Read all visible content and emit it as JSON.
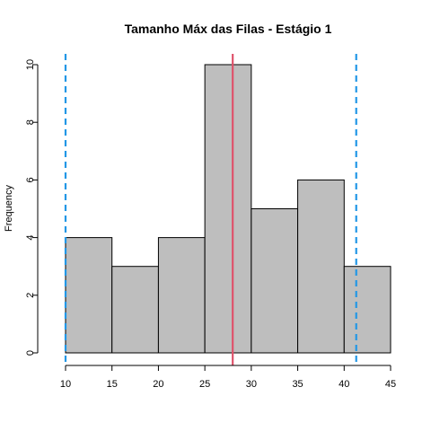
{
  "chart_data": {
    "type": "bar",
    "title": "Tamanho Máx das Filas - Estágio 1",
    "xlabel": "",
    "ylabel": "Frequency",
    "bins": [
      {
        "from": 10,
        "to": 15,
        "count": 4
      },
      {
        "from": 15,
        "to": 20,
        "count": 3
      },
      {
        "from": 20,
        "to": 25,
        "count": 4
      },
      {
        "from": 25,
        "to": 30,
        "count": 10
      },
      {
        "from": 30,
        "to": 35,
        "count": 5
      },
      {
        "from": 35,
        "to": 40,
        "count": 6
      },
      {
        "from": 40,
        "to": 45,
        "count": 3
      }
    ],
    "x_ticks": [
      "10",
      "15",
      "20",
      "25",
      "30",
      "35",
      "40",
      "45"
    ],
    "y_ticks": [
      "0",
      "2",
      "4",
      "6",
      "8",
      "10"
    ],
    "xlim": [
      10,
      45
    ],
    "ylim": [
      0,
      10
    ],
    "grid": false,
    "bar_fill": "#bebebe",
    "bar_stroke": "#000000",
    "reference_lines": [
      {
        "x": 28,
        "color": "#df536b",
        "style": "solid"
      },
      {
        "x": 10,
        "color": "#2297e6",
        "style": "dashed"
      },
      {
        "x": 41.3,
        "color": "#2297e6",
        "style": "dashed"
      }
    ]
  }
}
